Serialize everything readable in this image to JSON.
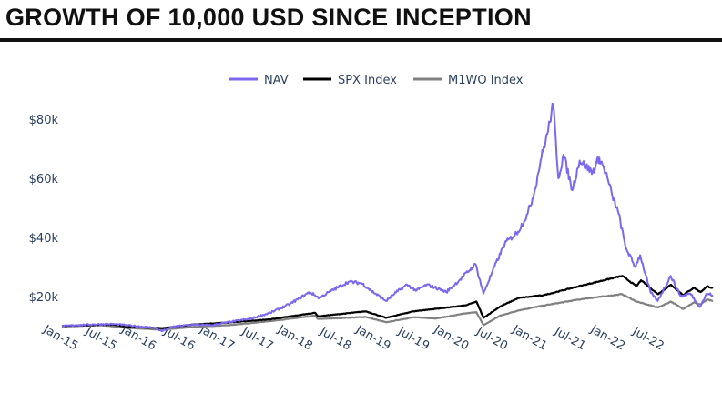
{
  "header": {
    "title": "GROWTH OF 10,000 USD SINCE INCEPTION"
  },
  "chart_data": {
    "type": "line",
    "title": "GROWTH OF 10,000 USD SINCE INCEPTION",
    "xlabel": "",
    "ylabel": "",
    "xlim": [
      "2014-10-31",
      "2023-02-28"
    ],
    "ylim": [
      8000,
      88000
    ],
    "y_ticks": [
      20000,
      40000,
      60000,
      80000
    ],
    "y_tick_labels": [
      "$20k",
      "$40k",
      "$60k",
      "$80k"
    ],
    "x_ticks": [
      "2015-01-01",
      "2015-07-01",
      "2016-01-01",
      "2016-07-01",
      "2017-01-01",
      "2017-07-01",
      "2018-01-01",
      "2018-07-01",
      "2019-01-01",
      "2019-07-01",
      "2020-01-01",
      "2020-07-01",
      "2021-01-01",
      "2021-07-01",
      "2022-01-01",
      "2022-07-01"
    ],
    "x_tick_labels": [
      "Jan-15",
      "Jul-15",
      "Jan-16",
      "Jul-16",
      "Jan-17",
      "Jul-17",
      "Jan-18",
      "Jul-18",
      "Jan-19",
      "Jul-19",
      "Jan-20",
      "Jul-20",
      "Jan-21",
      "Jul-21",
      "Jan-22",
      "Jul-22"
    ],
    "grid": false,
    "legend": "top-center",
    "series": [
      {
        "name": "NAV",
        "color": "#7b68ee",
        "points": [
          [
            "2014-10-31",
            10000
          ],
          [
            "2015-01-01",
            10300
          ],
          [
            "2015-04-01",
            10600
          ],
          [
            "2015-07-01",
            10700
          ],
          [
            "2015-10-01",
            10100
          ],
          [
            "2016-01-01",
            9500
          ],
          [
            "2016-02-10",
            8300
          ],
          [
            "2016-04-01",
            9800
          ],
          [
            "2016-07-01",
            10500
          ],
          [
            "2016-10-01",
            10300
          ],
          [
            "2017-01-01",
            11500
          ],
          [
            "2017-04-01",
            12500
          ],
          [
            "2017-07-01",
            14500
          ],
          [
            "2017-10-01",
            17500
          ],
          [
            "2018-01-01",
            21500
          ],
          [
            "2018-02-15",
            19500
          ],
          [
            "2018-04-01",
            21500
          ],
          [
            "2018-07-01",
            25000
          ],
          [
            "2018-09-01",
            24500
          ],
          [
            "2018-10-15",
            22000
          ],
          [
            "2018-12-24",
            18500
          ],
          [
            "2019-02-01",
            21000
          ],
          [
            "2019-04-01",
            24000
          ],
          [
            "2019-05-15",
            22000
          ],
          [
            "2019-07-01",
            24000
          ],
          [
            "2019-09-01",
            22500
          ],
          [
            "2019-10-01",
            21500
          ],
          [
            "2019-12-01",
            25500
          ],
          [
            "2020-02-15",
            31000
          ],
          [
            "2020-03-23",
            21000
          ],
          [
            "2020-05-01",
            28000
          ],
          [
            "2020-07-01",
            38000
          ],
          [
            "2020-09-01",
            42000
          ],
          [
            "2020-10-15",
            48000
          ],
          [
            "2020-11-15",
            55000
          ],
          [
            "2020-12-15",
            66000
          ],
          [
            "2021-01-15",
            75000
          ],
          [
            "2021-02-12",
            85000
          ],
          [
            "2021-03-08",
            60000
          ],
          [
            "2021-04-01",
            68000
          ],
          [
            "2021-05-12",
            56000
          ],
          [
            "2021-06-15",
            66000
          ],
          [
            "2021-07-15",
            64000
          ],
          [
            "2021-08-15",
            62000
          ],
          [
            "2021-09-15",
            67000
          ],
          [
            "2021-10-15",
            62000
          ],
          [
            "2021-11-15",
            54000
          ],
          [
            "2021-12-15",
            48000
          ],
          [
            "2022-01-15",
            37000
          ],
          [
            "2022-03-01",
            30000
          ],
          [
            "2022-03-25",
            34000
          ],
          [
            "2022-05-12",
            21500
          ],
          [
            "2022-06-15",
            18500
          ],
          [
            "2022-08-15",
            27000
          ],
          [
            "2022-10-01",
            20000
          ],
          [
            "2022-11-15",
            21000
          ],
          [
            "2022-12-28",
            16500
          ],
          [
            "2023-01-31",
            21000
          ],
          [
            "2023-02-28",
            20500
          ]
        ]
      },
      {
        "name": "SPX Index",
        "color": "#000000",
        "points": [
          [
            "2014-10-31",
            10000
          ],
          [
            "2015-01-01",
            10200
          ],
          [
            "2015-07-01",
            10500
          ],
          [
            "2015-09-01",
            9800
          ],
          [
            "2016-02-10",
            9300
          ],
          [
            "2016-07-01",
            10500
          ],
          [
            "2017-01-01",
            11300
          ],
          [
            "2017-07-01",
            12300
          ],
          [
            "2018-01-26",
            14500
          ],
          [
            "2018-02-09",
            13300
          ],
          [
            "2018-09-20",
            15000
          ],
          [
            "2018-12-24",
            12800
          ],
          [
            "2019-04-30",
            15000
          ],
          [
            "2019-07-01",
            15500
          ],
          [
            "2019-12-31",
            17000
          ],
          [
            "2020-02-19",
            18300
          ],
          [
            "2020-03-23",
            12800
          ],
          [
            "2020-06-08",
            16600
          ],
          [
            "2020-09-02",
            19500
          ],
          [
            "2020-12-31",
            20500
          ],
          [
            "2021-06-30",
            23800
          ],
          [
            "2021-12-31",
            27000
          ],
          [
            "2022-03-08",
            23500
          ],
          [
            "2022-03-29",
            25500
          ],
          [
            "2022-06-16",
            20800
          ],
          [
            "2022-08-16",
            24000
          ],
          [
            "2022-10-12",
            20500
          ],
          [
            "2022-12-01",
            23000
          ],
          [
            "2023-01-01",
            21500
          ],
          [
            "2023-02-02",
            23500
          ],
          [
            "2023-02-28",
            22800
          ]
        ]
      },
      {
        "name": "M1WO Index",
        "color": "#808080",
        "points": [
          [
            "2014-10-31",
            10000
          ],
          [
            "2015-01-01",
            10000
          ],
          [
            "2015-05-01",
            10400
          ],
          [
            "2015-09-01",
            9400
          ],
          [
            "2016-02-10",
            8800
          ],
          [
            "2016-07-01",
            9700
          ],
          [
            "2017-01-01",
            10400
          ],
          [
            "2017-07-01",
            11700
          ],
          [
            "2018-01-26",
            13500
          ],
          [
            "2018-02-09",
            12400
          ],
          [
            "2018-09-20",
            13100
          ],
          [
            "2018-12-24",
            11300
          ],
          [
            "2019-04-30",
            13000
          ],
          [
            "2019-08-15",
            12600
          ],
          [
            "2019-12-31",
            14300
          ],
          [
            "2020-02-19",
            14700
          ],
          [
            "2020-03-23",
            10300
          ],
          [
            "2020-06-08",
            13500
          ],
          [
            "2020-09-02",
            15300
          ],
          [
            "2020-12-31",
            17000
          ],
          [
            "2021-06-30",
            19200
          ],
          [
            "2021-12-31",
            20800
          ],
          [
            "2022-03-08",
            18300
          ],
          [
            "2022-06-16",
            16300
          ],
          [
            "2022-08-16",
            18300
          ],
          [
            "2022-10-12",
            15800
          ],
          [
            "2022-12-01",
            18000
          ],
          [
            "2023-01-01",
            17300
          ],
          [
            "2023-02-02",
            19000
          ],
          [
            "2023-02-28",
            18400
          ]
        ]
      }
    ]
  }
}
